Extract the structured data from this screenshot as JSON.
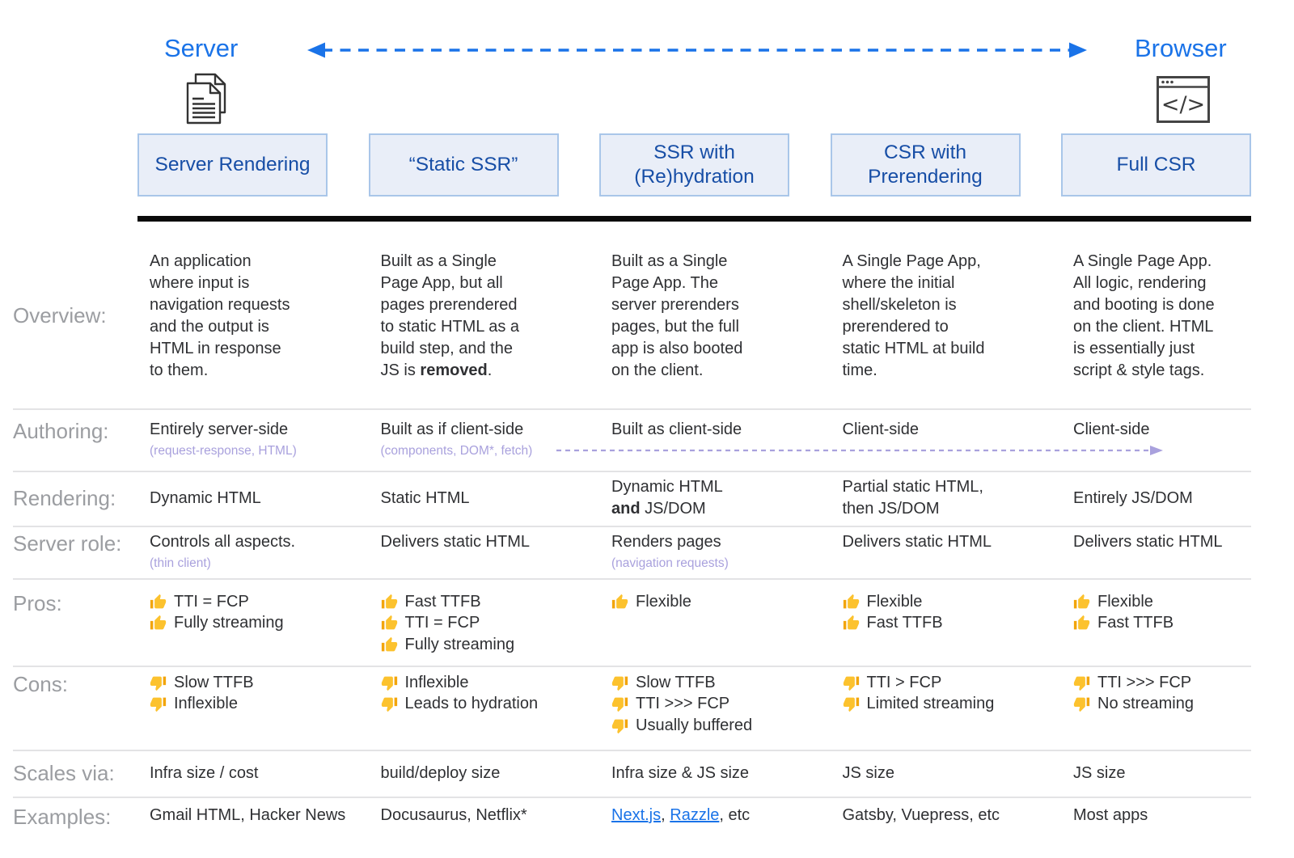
{
  "top": {
    "server_label": "Server",
    "browser_label": "Browser",
    "server_icon": "documents-icon",
    "browser_icon": "browser-window-icon"
  },
  "columns": [
    "Server Rendering",
    "“Static SSR”",
    "SSR with (Re)hydration",
    "CSR with Prerendering",
    "Full CSR"
  ],
  "colors": {
    "accent_blue": "#1a73e8",
    "header_text": "#174ea6",
    "header_fill": "#e9eef8",
    "header_border": "#a9c6e9",
    "label_gray": "#9b9da1",
    "body_text": "#2f3033",
    "subnote_purple": "#a9a1dd",
    "thumb_yellow": "#fcc22e",
    "thumb_cuff": "#f2a50c",
    "link_blue": "#1a73e8"
  },
  "rows": [
    {
      "key": "overview",
      "label": "Overview:",
      "cells": [
        {
          "lines": [
            "An application",
            "where input is",
            "navigation requests",
            "and the output is",
            "HTML in response",
            "to them."
          ]
        },
        {
          "lines": [
            "Built as a Single",
            "Page App, but all",
            "pages prerendered",
            "to static HTML as a",
            "build step, and the",
            [
              {
                "t": "JS is "
              },
              {
                "t": "removed",
                "bold": true
              },
              {
                "t": "."
              }
            ]
          ]
        },
        {
          "lines": [
            "Built as a Single",
            "Page App. The",
            "server prerenders",
            "pages, but the full",
            "app is also booted",
            "on the client."
          ]
        },
        {
          "lines": [
            "A Single Page App,",
            "where the initial",
            "shell/skeleton is",
            "prerendered to",
            "static HTML at build",
            "time."
          ]
        },
        {
          "lines": [
            "A Single Page App.",
            "All logic, rendering",
            "and booting is done",
            "on the client. HTML",
            "is essentially just",
            "script & style tags."
          ]
        }
      ]
    },
    {
      "key": "authoring",
      "label": "Authoring:",
      "trailing_arrow": true,
      "cells": [
        {
          "text": "Entirely server-side",
          "sub": "(request-response, HTML)"
        },
        {
          "text": "Built as if client-side",
          "sub": "(components, DOM*, fetch)"
        },
        {
          "text": "Built as client-side"
        },
        {
          "text": "Client-side"
        },
        {
          "text": "Client-side"
        }
      ]
    },
    {
      "key": "rendering",
      "label": "Rendering:",
      "cells": [
        {
          "text": "Dynamic HTML"
        },
        {
          "text": "Static HTML"
        },
        {
          "lines": [
            "Dynamic HTML",
            [
              {
                "t": "and",
                "bold": true
              },
              {
                "t": " JS/DOM"
              }
            ]
          ]
        },
        {
          "lines": [
            "Partial static HTML,",
            "then JS/DOM"
          ]
        },
        {
          "text": "Entirely JS/DOM"
        }
      ]
    },
    {
      "key": "server-role",
      "label": "Server role:",
      "cells": [
        {
          "text": "Controls all aspects.",
          "sub": "(thin client)"
        },
        {
          "text": "Delivers static HTML"
        },
        {
          "text": "Renders pages",
          "sub": "(navigation requests)"
        },
        {
          "text": "Delivers static HTML"
        },
        {
          "text": "Delivers static HTML"
        }
      ]
    },
    {
      "key": "pros",
      "label": "Pros:",
      "icon": "thumb-up-icon",
      "cells": [
        {
          "items": [
            "TTI = FCP",
            "Fully streaming"
          ]
        },
        {
          "items": [
            "Fast TTFB",
            "TTI = FCP",
            "Fully streaming"
          ]
        },
        {
          "items": [
            "Flexible"
          ]
        },
        {
          "items": [
            "Flexible",
            "Fast TTFB"
          ]
        },
        {
          "items": [
            "Flexible",
            "Fast TTFB"
          ]
        }
      ]
    },
    {
      "key": "cons",
      "label": "Cons:",
      "icon": "thumb-down-icon",
      "cells": [
        {
          "items": [
            "Slow TTFB",
            "Inflexible"
          ]
        },
        {
          "items": [
            "Inflexible",
            "Leads to hydration"
          ]
        },
        {
          "items": [
            "Slow TTFB",
            "TTI >>> FCP",
            "Usually buffered"
          ]
        },
        {
          "items": [
            "TTI > FCP",
            "Limited streaming"
          ]
        },
        {
          "items": [
            "TTI >>> FCP",
            "No streaming"
          ]
        }
      ]
    },
    {
      "key": "scales-via",
      "label": "Scales via:",
      "cells": [
        {
          "text": "Infra size / cost"
        },
        {
          "text": "build/deploy size"
        },
        {
          "text": "Infra size & JS size"
        },
        {
          "text": "JS size"
        },
        {
          "text": "JS size"
        }
      ]
    },
    {
      "key": "examples",
      "label": "Examples:",
      "cells": [
        {
          "text": "Gmail HTML, Hacker News"
        },
        {
          "text": "Docusaurus, Netflix*"
        },
        {
          "segments": [
            {
              "t": "Next.js",
              "link": true
            },
            {
              "t": ", "
            },
            {
              "t": "Razzle",
              "link": true
            },
            {
              "t": ", etc"
            }
          ]
        },
        {
          "text": "Gatsby, Vuepress, etc"
        },
        {
          "text": "Most apps"
        }
      ]
    }
  ]
}
